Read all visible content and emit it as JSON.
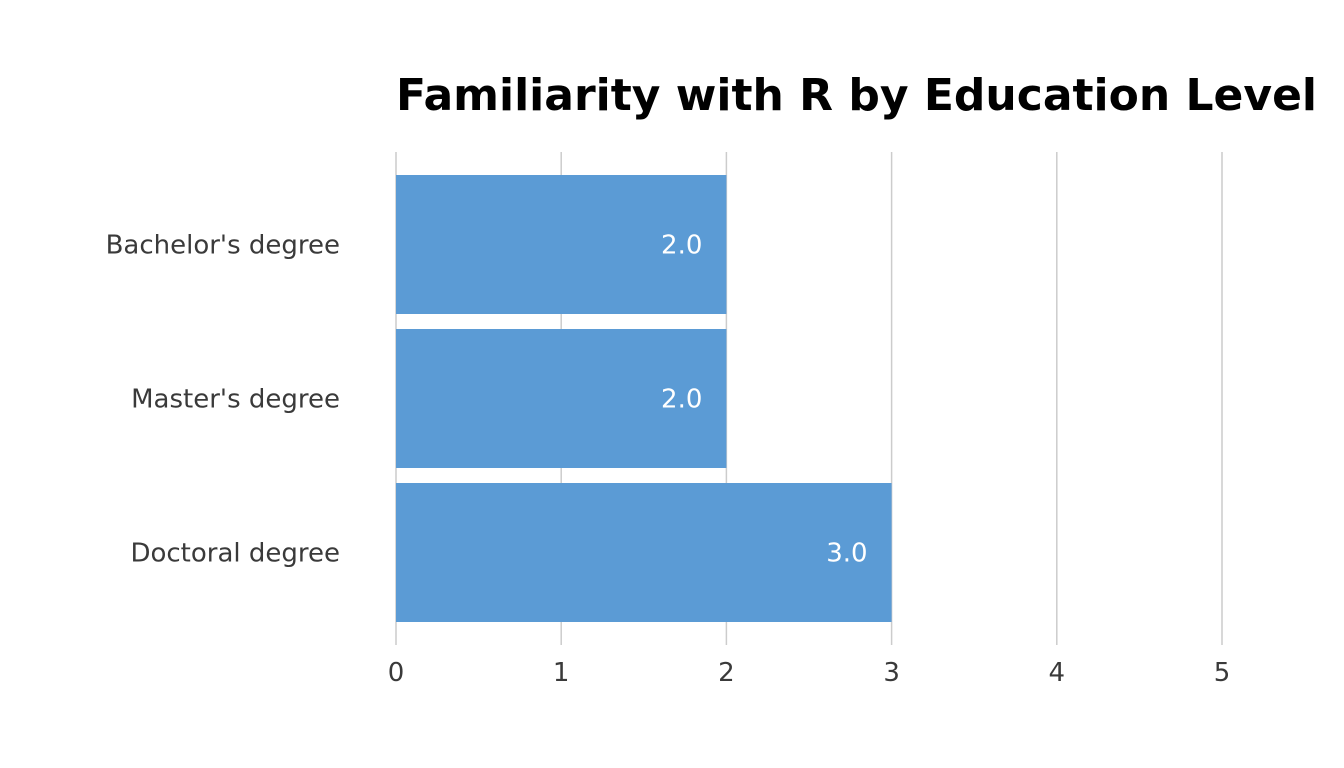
{
  "chart_data": {
    "type": "bar",
    "orientation": "horizontal",
    "title": "Familiarity with R by Education Level",
    "xlabel": "",
    "ylabel": "",
    "categories": [
      "Bachelor's degree",
      "Master's degree",
      "Doctoral degree"
    ],
    "values": [
      2.0,
      2.0,
      3.0
    ],
    "data_labels": [
      "2.0",
      "2.0",
      "3.0"
    ],
    "xlim": [
      0,
      5
    ],
    "x_ticks": [
      0,
      1,
      2,
      3,
      4,
      5
    ],
    "grid": "vertical",
    "legend": "none",
    "colors": {
      "bar": "#5b9bd5",
      "grid": "#cccccc",
      "data_label": "#ffffff"
    }
  }
}
